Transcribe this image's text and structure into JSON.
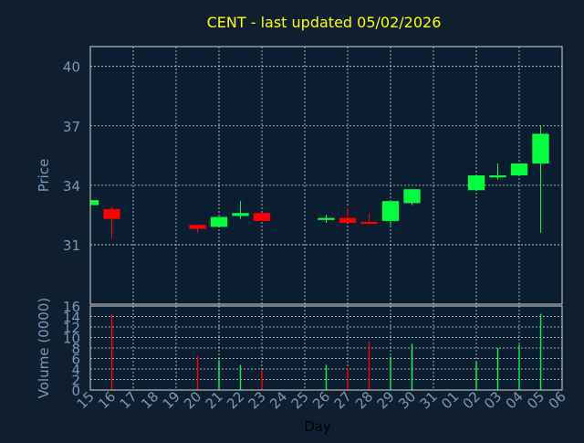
{
  "colors": {
    "background": "#0f1f30",
    "plot_area": "#0b1d30",
    "grid": "#d8d8d8",
    "text": "#7a98b8",
    "title": "#ffff00",
    "up": "#00ff3c",
    "down": "#ff0000",
    "axis_title": "#000000"
  },
  "chart_data": [
    {
      "type": "candlestick",
      "title": "CENT - last updated 05/02/2026",
      "ylabel": "Price",
      "ylim": [
        28,
        41
      ],
      "yticks": [
        31,
        34,
        37,
        40
      ],
      "grid": true,
      "x_labels": [
        "15",
        "16",
        "17",
        "18",
        "19",
        "20",
        "21",
        "22",
        "23",
        "24",
        "25",
        "26",
        "27",
        "28",
        "29",
        "30",
        "31",
        "01",
        "02",
        "03",
        "04",
        "05",
        "06"
      ],
      "candles": [
        {
          "x": "15",
          "open": 33.0,
          "close": 33.25,
          "high": 33.25,
          "low": 33.0
        },
        {
          "x": "16",
          "open": 32.8,
          "close": 32.3,
          "high": 32.9,
          "low": 31.3
        },
        {
          "x": "20",
          "open": 32.0,
          "close": 31.8,
          "high": 32.0,
          "low": 31.6
        },
        {
          "x": "21",
          "open": 31.9,
          "close": 32.4,
          "high": 32.4,
          "low": 31.9
        },
        {
          "x": "22",
          "open": 32.45,
          "close": 32.6,
          "high": 33.2,
          "low": 32.3
        },
        {
          "x": "23",
          "open": 32.6,
          "close": 32.2,
          "high": 32.6,
          "low": 32.2
        },
        {
          "x": "26",
          "open": 32.25,
          "close": 32.35,
          "high": 32.5,
          "low": 32.1
        },
        {
          "x": "27",
          "open": 32.35,
          "close": 32.1,
          "high": 32.9,
          "low": 32.1
        },
        {
          "x": "28",
          "open": 32.15,
          "close": 32.05,
          "high": 32.6,
          "low": 32.05
        },
        {
          "x": "29",
          "open": 32.2,
          "close": 33.2,
          "high": 33.2,
          "low": 31.9
        },
        {
          "x": "30",
          "open": 33.1,
          "close": 33.8,
          "high": 33.8,
          "low": 33.0
        },
        {
          "x": "02",
          "open": 33.75,
          "close": 34.5,
          "high": 34.5,
          "low": 33.75
        },
        {
          "x": "03",
          "open": 34.4,
          "close": 34.5,
          "high": 35.1,
          "low": 34.3
        },
        {
          "x": "04",
          "open": 34.5,
          "close": 35.1,
          "high": 35.1,
          "low": 34.5
        },
        {
          "x": "05",
          "open": 35.1,
          "close": 36.6,
          "high": 37.0,
          "low": 31.6
        }
      ]
    },
    {
      "type": "bar",
      "ylabel": "Volume (0000)",
      "xlabel": "Day",
      "ylim": [
        0,
        16
      ],
      "yticks": [
        0,
        2,
        4,
        6,
        8,
        10,
        12,
        14,
        16
      ],
      "grid": true,
      "x_labels": [
        "15",
        "16",
        "17",
        "18",
        "19",
        "20",
        "21",
        "22",
        "23",
        "24",
        "25",
        "26",
        "27",
        "28",
        "29",
        "30",
        "31",
        "01",
        "02",
        "03",
        "04",
        "05",
        "06"
      ],
      "bars": [
        {
          "x": "16",
          "value": 14.5,
          "dir": "down"
        },
        {
          "x": "20",
          "value": 6.5,
          "dir": "down"
        },
        {
          "x": "21",
          "value": 5.7,
          "dir": "up"
        },
        {
          "x": "22",
          "value": 4.8,
          "dir": "up"
        },
        {
          "x": "23",
          "value": 3.8,
          "dir": "down"
        },
        {
          "x": "26",
          "value": 4.8,
          "dir": "up"
        },
        {
          "x": "27",
          "value": 4.2,
          "dir": "down"
        },
        {
          "x": "28",
          "value": 9.2,
          "dir": "down"
        },
        {
          "x": "29",
          "value": 6.4,
          "dir": "up"
        },
        {
          "x": "30",
          "value": 8.8,
          "dir": "up"
        },
        {
          "x": "02",
          "value": 5.5,
          "dir": "up"
        },
        {
          "x": "03",
          "value": 8.0,
          "dir": "up"
        },
        {
          "x": "04",
          "value": 8.6,
          "dir": "up"
        },
        {
          "x": "05",
          "value": 14.5,
          "dir": "up"
        }
      ]
    }
  ]
}
